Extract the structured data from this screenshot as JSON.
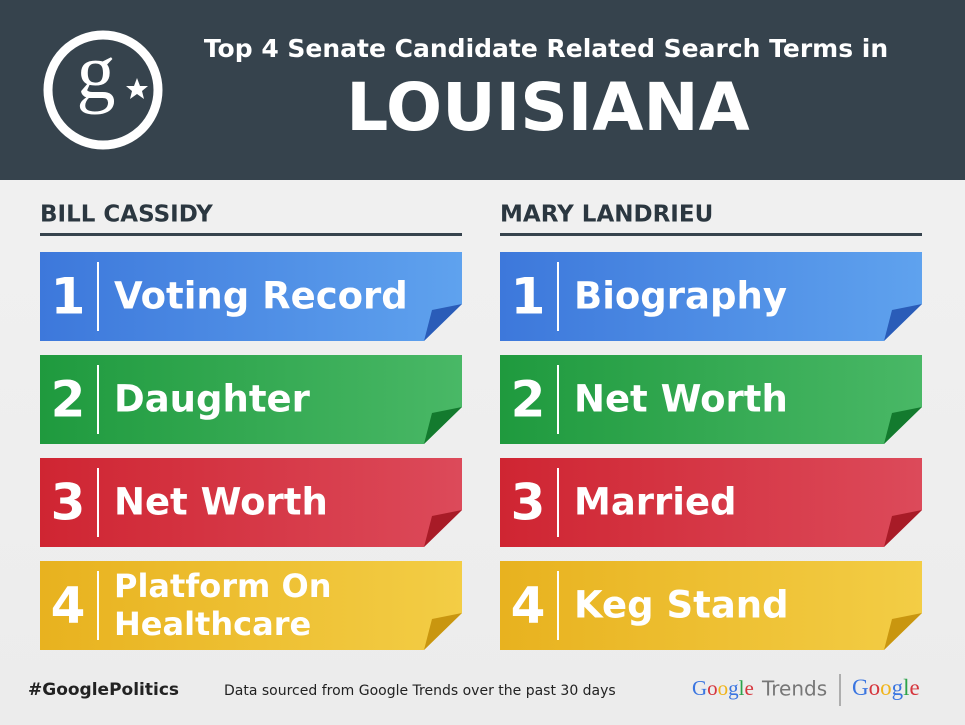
{
  "header": {
    "logo": "g",
    "title": "Top 4 Senate Candidate Related Search Terms in",
    "state": "LOUISIANA"
  },
  "columns": [
    {
      "name": "BILL CASSIDY",
      "items": [
        {
          "rank": 1,
          "lines": [
            "Voting Record"
          ]
        },
        {
          "rank": 2,
          "lines": [
            "Daughter"
          ]
        },
        {
          "rank": 3,
          "lines": [
            "Net Worth"
          ]
        },
        {
          "rank": 4,
          "lines": [
            "Platform On",
            "Healthcare"
          ]
        }
      ]
    },
    {
      "name": "MARY LANDRIEU",
      "items": [
        {
          "rank": 1,
          "lines": [
            "Biography"
          ]
        },
        {
          "rank": 2,
          "lines": [
            "Net Worth"
          ]
        },
        {
          "rank": 3,
          "lines": [
            "Married"
          ]
        },
        {
          "rank": 4,
          "lines": [
            "Keg Stand"
          ]
        }
      ]
    }
  ],
  "footer": {
    "hashtag": "#GooglePolitics",
    "source": "Data sourced from Google Trends over the past 30 days",
    "trends_brand": "Google",
    "trends_word": "Trends",
    "google": "Google"
  }
}
